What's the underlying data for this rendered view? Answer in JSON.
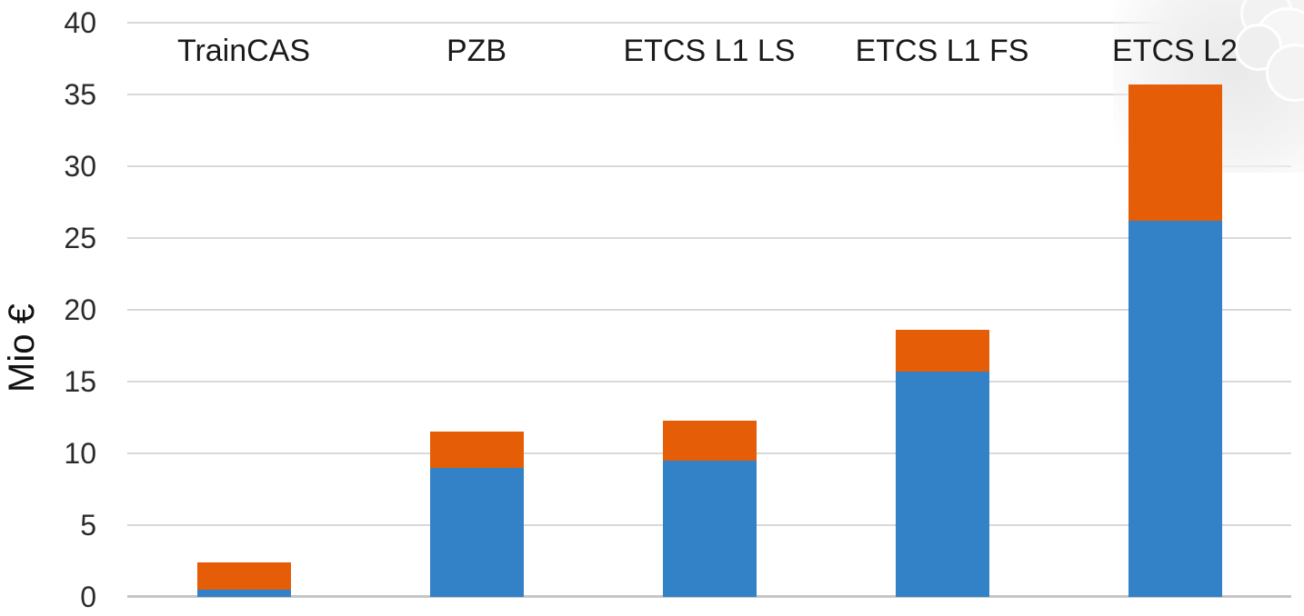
{
  "chart_data": {
    "type": "bar",
    "stacked": true,
    "categories": [
      "TrainCAS",
      "PZB",
      "ETCS L1 LS",
      "ETCS L1 FS",
      "ETCS L2"
    ],
    "series": [
      {
        "name": "blue",
        "color": "#3381C6",
        "values": [
          0.5,
          9.0,
          9.5,
          15.7,
          26.2
        ]
      },
      {
        "name": "orange",
        "color": "#E55D06",
        "values": [
          1.9,
          2.5,
          2.8,
          2.9,
          9.5
        ]
      }
    ],
    "totals": [
      2.4,
      11.5,
      12.3,
      18.6,
      35.7
    ],
    "ylabel": "Mio €",
    "xlabel": "",
    "ylim": [
      0,
      40
    ],
    "yticks": [
      40,
      35,
      30,
      25,
      20,
      15,
      10,
      5,
      0
    ],
    "grid": true,
    "legend": false,
    "category_label_position": "top"
  },
  "colors": {
    "gridline": "#D9D9D9",
    "baseline": "#C6C6C6",
    "tick_text": "#2B2B2B",
    "category_text": "#1A1A1A",
    "background": "#FFFFFF"
  }
}
